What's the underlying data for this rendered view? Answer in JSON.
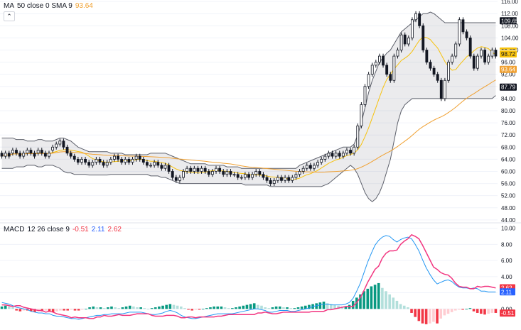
{
  "legend_main": {
    "name": "MA",
    "params": "50 close 0 SMA 9",
    "value": "93.64",
    "value_color": "#f0a030"
  },
  "legend_macd": {
    "name": "MACD",
    "params": "12 26 close 9",
    "v1": "-0.51",
    "v1_color": "#f23645",
    "v2": "2.11",
    "v2_color": "#2962ff",
    "v3": "2.62",
    "v3_color": "#f23645"
  },
  "collapse_icon": "chevron-up-icon",
  "chart_data": [
    {
      "type": "candlestick",
      "title": "",
      "ylim": [
        43.5,
        116.5
      ],
      "yticks": [
        "116.00",
        "112.00",
        "108.00",
        "104.00",
        "100.00",
        "96.00",
        "92.00",
        "88.00",
        "84.00",
        "80.00",
        "76.00",
        "72.00",
        "68.00",
        "64.00",
        "60.00",
        "56.00",
        "52.00",
        "48.00",
        "44.00"
      ],
      "grid": true,
      "price_labels": [
        {
          "text": "109.65",
          "value": 109.65,
          "bg": "#131722",
          "fg": "#ffffff"
        },
        {
          "text": "99.67",
          "value": 99.67,
          "bg": "#f7c20c",
          "fg": "#131722"
        },
        {
          "text": "98.95",
          "value": 98.95,
          "bg": "#ffffff",
          "fg": "#131722"
        },
        {
          "text": "98.72",
          "value": 98.72,
          "bg": "#f7c20c",
          "fg": "#131722"
        },
        {
          "text": "93.64",
          "value": 93.64,
          "bg": "#f0a030",
          "fg": "#ffffff"
        },
        {
          "text": "87.79",
          "value": 87.79,
          "bg": "#131722",
          "fg": "#ffffff"
        }
      ],
      "close": [
        65,
        66,
        65,
        67,
        66,
        65,
        66,
        67,
        66,
        65,
        67,
        66,
        65,
        66,
        68,
        69,
        70,
        68,
        66,
        65,
        64,
        63,
        64,
        63,
        62,
        63,
        64,
        63,
        62,
        63,
        64,
        65,
        64,
        63,
        64,
        63,
        64,
        65,
        64,
        63,
        62,
        62,
        63,
        62,
        61,
        62,
        60,
        58,
        57,
        58,
        60,
        61,
        60,
        61,
        60,
        61,
        60,
        59,
        60,
        61,
        60,
        59,
        60,
        59,
        59,
        58,
        58,
        59,
        58,
        59,
        60,
        59,
        58,
        57,
        56,
        57,
        58,
        57,
        58,
        57,
        58,
        59,
        60,
        61,
        62,
        61,
        62,
        63,
        64,
        65,
        66,
        65,
        66,
        65,
        66,
        67,
        66,
        68,
        75,
        82,
        88,
        92,
        95,
        96,
        98,
        95,
        92,
        90,
        98,
        100,
        105,
        102,
        104,
        110,
        112,
        108,
        100,
        96,
        94,
        92,
        90,
        84,
        90,
        96,
        98,
        102,
        110,
        106,
        104,
        98,
        94,
        98,
        100,
        96,
        98,
        100,
        98
      ],
      "open": [
        66,
        65,
        66,
        66,
        67,
        66,
        65,
        66,
        67,
        66,
        66,
        67,
        66,
        65,
        67,
        68,
        69,
        70,
        68,
        66,
        65,
        64,
        63,
        64,
        63,
        62,
        63,
        64,
        63,
        62,
        63,
        64,
        65,
        64,
        63,
        64,
        63,
        64,
        65,
        64,
        63,
        62,
        62,
        63,
        62,
        61,
        62,
        60,
        58,
        57,
        58,
        60,
        61,
        60,
        61,
        60,
        61,
        60,
        59,
        60,
        61,
        60,
        59,
        60,
        59,
        59,
        58,
        58,
        59,
        58,
        59,
        60,
        59,
        58,
        57,
        56,
        57,
        58,
        57,
        58,
        57,
        58,
        59,
        60,
        61,
        62,
        61,
        62,
        63,
        64,
        65,
        66,
        65,
        66,
        65,
        66,
        67,
        66,
        68,
        75,
        82,
        88,
        92,
        95,
        96,
        98,
        95,
        92,
        90,
        98,
        100,
        105,
        102,
        104,
        110,
        112,
        108,
        100,
        96,
        94,
        92,
        90,
        84,
        90,
        96,
        98,
        102,
        110,
        106,
        104,
        98,
        94,
        98,
        100,
        96,
        98,
        100
      ],
      "bb_upper": [
        71,
        71,
        71,
        71,
        70.5,
        70.5,
        70.5,
        70,
        70,
        70,
        70.5,
        70.5,
        70,
        70,
        70,
        70.5,
        71,
        71,
        70.5,
        70,
        69,
        68,
        67.5,
        67,
        66.5,
        66.5,
        66.5,
        66.5,
        66.5,
        66.5,
        66,
        66,
        66,
        66,
        65.5,
        65.5,
        65.5,
        65.5,
        65.5,
        65.5,
        65.5,
        66,
        66,
        66,
        66,
        66,
        65.5,
        65,
        64.5,
        64,
        63.5,
        63,
        62.5,
        62.5,
        62.5,
        62.5,
        62.5,
        62,
        62,
        62,
        62,
        62,
        61.5,
        61.5,
        61.5,
        61.5,
        61,
        61,
        61,
        61,
        61,
        61,
        61,
        61,
        61,
        61,
        61,
        61,
        61,
        61,
        61,
        61,
        62,
        62.5,
        63,
        63.5,
        64,
        64.5,
        65,
        65.5,
        66,
        66.5,
        67,
        67.5,
        68,
        68,
        68,
        69,
        72,
        76,
        81,
        86,
        90,
        93,
        96,
        97.5,
        99,
        100,
        102,
        104,
        106,
        107,
        108,
        109,
        110,
        111,
        112,
        112,
        112.5,
        112,
        111,
        110,
        109,
        109,
        109,
        109,
        109,
        109,
        109,
        109,
        109,
        109,
        109,
        109,
        109,
        109,
        109,
        109,
        109,
        109
      ],
      "bb_lower": [
        61,
        61,
        61,
        61,
        61.5,
        61.5,
        61.5,
        62,
        62,
        62,
        61.5,
        61.5,
        62,
        62,
        62,
        61.5,
        61,
        60,
        59.5,
        59.5,
        59,
        59,
        59,
        59,
        58.8,
        58.8,
        58.8,
        58.8,
        58.8,
        58.8,
        59,
        59,
        59,
        59,
        59,
        59,
        59,
        59,
        59,
        59,
        59,
        58.5,
        58.5,
        58.5,
        58,
        58,
        57.5,
        57,
        56.5,
        56,
        56,
        56,
        56,
        56,
        56,
        56,
        56,
        56,
        56,
        56,
        56,
        56,
        56,
        56,
        56,
        56,
        56,
        55.5,
        55.5,
        55.5,
        55.5,
        55.5,
        55.5,
        55.5,
        55,
        55,
        55,
        55,
        55,
        55,
        55,
        55,
        55,
        55,
        55,
        55,
        55,
        55,
        55,
        55.5,
        56,
        57,
        58,
        59,
        60,
        61,
        62,
        61,
        59,
        56,
        53,
        51,
        50,
        51,
        53,
        56,
        60,
        64,
        70,
        76,
        80,
        82,
        83,
        84,
        84,
        84,
        84,
        84,
        84,
        84,
        84,
        84,
        84,
        84,
        84,
        84,
        84,
        84,
        84,
        84,
        84,
        84,
        84,
        84,
        84,
        84,
        85,
        86,
        86.5,
        87,
        87.5,
        88
      ]
    },
    {
      "type": "macd",
      "title": "",
      "ylim": [
        -2,
        10.5
      ],
      "yticks": [
        "10.00",
        "8.00",
        "6.00",
        "4.00",
        "2.00",
        "0.00"
      ],
      "value_labels": [
        {
          "text": "2.62",
          "value": 2.62,
          "bg": "#f23645",
          "fg": "#ffffff"
        },
        {
          "text": "2.11",
          "value": 2.11,
          "bg": "#2962ff",
          "fg": "#ffffff"
        },
        {
          "text": "-0.51",
          "value": -0.51,
          "bg": "#f23645",
          "fg": "#ffffff"
        }
      ],
      "hist": [
        0.3,
        0.4,
        0.3,
        0.2,
        -0.2,
        -0.3,
        -0.2,
        -0.2,
        -0.3,
        -0.4,
        -0.3,
        -0.3,
        -0.2,
        -0.3,
        -0.4,
        -0.3,
        -0.2,
        -0.2,
        -0.2,
        -0.1,
        -0.2,
        -0.2,
        -0.1,
        0,
        0.2,
        0.3,
        0.2,
        0.2,
        0.1,
        0.2,
        0.3,
        0.2,
        0.1,
        0.2,
        0.3,
        0.4,
        0.3,
        0.2,
        0.2,
        0.1,
        0,
        0.1,
        0.2,
        0.3,
        0.4,
        0.5,
        0.6,
        0.5,
        0.4,
        0.3,
        0.1,
        -0.1,
        -0.2,
        -0.1,
        -0.1,
        0,
        0.1,
        0.2,
        0.3,
        0.3,
        0.3,
        0.2,
        0.1,
        0.1,
        0.2,
        0.3,
        0.4,
        0.5,
        0.6,
        0.7,
        0.5,
        0.4,
        0.2,
        0.1,
        0.2,
        0.3,
        0.3,
        0.2,
        0.2,
        0.1,
        0.1,
        0.2,
        0.3,
        0.4,
        0.5,
        0.6,
        0.7,
        0.8,
        0.9,
        0.7,
        0.6,
        0.5,
        0.4,
        0.3,
        0.3,
        0.5,
        1.0,
        1.4,
        1.8,
        2.2,
        2.5,
        2.8,
        3.0,
        3.2,
        2.6,
        2.2,
        1.8,
        1.4,
        1.0,
        0.6,
        0.4,
        0.2,
        -0.5,
        -1.0,
        -1.5,
        -1.8,
        -1.9,
        -1.8,
        -1.6,
        -1.8,
        -1.2,
        -0.8,
        -0.6,
        -0.4,
        -0.2,
        -0.1,
        -0.1,
        0,
        0.1,
        -0.3,
        -0.5,
        -0.6,
        -0.7,
        -0.6,
        -0.5,
        -0.5
      ],
      "macd": [
        0.8,
        0.7,
        0.6,
        0.4,
        0.2,
        0.1,
        0,
        -0.1,
        -0.3,
        -0.4,
        -0.5,
        -0.5,
        -0.6,
        -0.6,
        -0.8,
        -0.9,
        -0.9,
        -1,
        -1.1,
        -1.2,
        -1.2,
        -1.3,
        -1.2,
        -1.1,
        -1,
        -0.9,
        -0.8,
        -0.8,
        -0.7,
        -0.7,
        -0.6,
        -0.6,
        -0.6,
        -0.6,
        -0.5,
        -0.4,
        -0.4,
        -0.4,
        -0.4,
        -0.5,
        -0.6,
        -0.7,
        -0.7,
        -0.6,
        -0.5,
        -0.3,
        -0.2,
        -0.3,
        -0.5,
        -0.8,
        -1,
        -1.1,
        -1.2,
        -1.2,
        -1.1,
        -1,
        -0.9,
        -0.8,
        -0.7,
        -0.6,
        -0.6,
        -0.6,
        -0.6,
        -0.6,
        -0.5,
        -0.4,
        -0.3,
        -0.2,
        -0.1,
        0,
        0,
        -0.1,
        -0.2,
        -0.4,
        -0.4,
        -0.3,
        -0.2,
        -0.2,
        -0.2,
        -0.3,
        -0.3,
        -0.2,
        -0.1,
        0,
        0.1,
        0.3,
        0.4,
        0.5,
        0.6,
        0.6,
        0.5,
        0.5,
        0.5,
        0.5,
        0.6,
        0.8,
        1.3,
        2.2,
        3.2,
        4.5,
        5.8,
        6.9,
        7.9,
        8.5,
        8.9,
        9.1,
        9.0,
        8.6,
        8.3,
        8.6,
        8.8,
        8.9,
        8.7,
        8.0,
        7.2,
        6.1,
        5.1,
        4.3,
        3.6,
        3.1,
        3.3,
        3.5,
        3.6,
        3.4,
        3.0,
        2.7,
        2.6,
        2.6,
        2.5,
        2.6,
        2.5,
        2.2,
        2.2,
        2.1,
        2.1,
        2.1
      ],
      "signal": [
        0.5,
        0.5,
        0.4,
        0.3,
        0.4,
        0.4,
        0.2,
        0.1,
        0,
        -0.1,
        -0.2,
        -0.2,
        -0.4,
        -0.3,
        -0.4,
        -0.6,
        -0.7,
        -0.8,
        -0.9,
        -1.1,
        -1,
        -1.1,
        -1.1,
        -1.1,
        -1.2,
        -1.2,
        -1,
        -1,
        -0.8,
        -0.9,
        -0.9,
        -0.8,
        -0.7,
        -0.8,
        -0.8,
        -0.8,
        -0.7,
        -0.6,
        -0.6,
        -0.6,
        -0.6,
        -0.8,
        -0.9,
        -0.9,
        -0.9,
        -0.8,
        -0.8,
        -0.8,
        -0.9,
        -1.1,
        -1.1,
        -1,
        -1,
        -1.1,
        -1,
        -1,
        -1,
        -1,
        -1,
        -0.9,
        -0.9,
        -0.8,
        -0.7,
        -0.7,
        -0.7,
        -0.7,
        -0.7,
        -0.7,
        -0.7,
        -0.7,
        -0.5,
        -0.5,
        -0.4,
        -0.5,
        -0.6,
        -0.6,
        -0.5,
        -0.4,
        -0.4,
        -0.4,
        -0.4,
        -0.4,
        -0.4,
        -0.4,
        -0.4,
        -0.3,
        -0.3,
        -0.3,
        -0.3,
        -0.1,
        -0.1,
        0,
        0.1,
        0.2,
        0.3,
        0.3,
        0.3,
        0.8,
        1.4,
        2.3,
        3.3,
        4.1,
        4.9,
        5.3,
        6.3,
        6.9,
        7.2,
        7.2,
        7.3,
        8.0,
        8.4,
        8.7,
        9.2,
        9.0,
        8.7,
        7.9,
        7.0,
        6.1,
        5.2,
        4.9,
        4.5,
        4.3,
        4.2,
        3.8,
        3.2,
        2.8,
        2.7,
        2.7,
        2.5,
        2.5,
        2.8,
        2.7,
        2.8,
        2.8,
        2.7,
        2.6
      ]
    }
  ]
}
